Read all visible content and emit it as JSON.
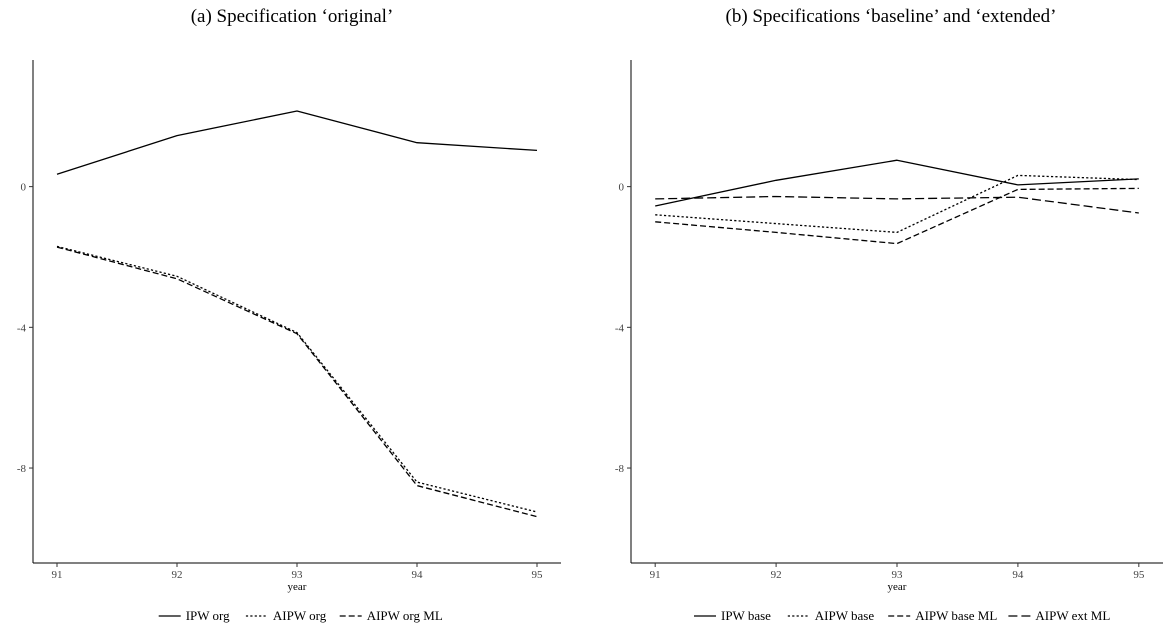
{
  "panels": {
    "a": {
      "title": "(a) Specification ‘original’"
    },
    "b": {
      "title": "(b) Specifications ‘baseline’ and ‘extended’"
    }
  },
  "chart_data": [
    {
      "type": "line",
      "title": "(a) Specification ‘original’",
      "xlabel": "year",
      "ylabel": "",
      "x": [
        91,
        92,
        93,
        94,
        95
      ],
      "x_ticks": [
        "91",
        "92",
        "93",
        "94",
        "95"
      ],
      "y_ticks": [
        0,
        -4,
        -8
      ],
      "xlim": [
        90.8,
        95.2
      ],
      "ylim": [
        -10.7,
        3.6
      ],
      "grid": false,
      "legend_position": "bottom",
      "series": [
        {
          "name": "IPW org",
          "dash": "solid",
          "values": [
            0.35,
            1.45,
            2.15,
            1.25,
            1.03
          ]
        },
        {
          "name": "AIPW org",
          "dash": "dotted",
          "values": [
            -1.7,
            -2.55,
            -4.15,
            -8.4,
            -9.25
          ]
        },
        {
          "name": "AIPW org ML",
          "dash": "dashed",
          "values": [
            -1.72,
            -2.62,
            -4.18,
            -8.5,
            -9.38
          ]
        }
      ]
    },
    {
      "type": "line",
      "title": "(b) Specifications ‘baseline’ and ‘extended’",
      "xlabel": "year",
      "ylabel": "",
      "x": [
        91,
        92,
        93,
        94,
        95
      ],
      "x_ticks": [
        "91",
        "92",
        "93",
        "94",
        "95"
      ],
      "y_ticks": [
        0,
        -4,
        -8
      ],
      "xlim": [
        90.8,
        95.2
      ],
      "ylim": [
        -10.7,
        3.6
      ],
      "grid": false,
      "legend_position": "bottom",
      "series": [
        {
          "name": "IPW base",
          "dash": "solid",
          "values": [
            -0.55,
            0.18,
            0.75,
            0.05,
            0.22
          ]
        },
        {
          "name": "AIPW base",
          "dash": "dotted",
          "values": [
            -0.8,
            -1.05,
            -1.3,
            0.32,
            0.2
          ]
        },
        {
          "name": "AIPW base ML",
          "dash": "dashed",
          "values": [
            -1.0,
            -1.3,
            -1.62,
            -0.08,
            -0.05
          ]
        },
        {
          "name": "AIPW ext ML",
          "dash": "longdash",
          "values": [
            -0.35,
            -0.28,
            -0.35,
            -0.3,
            -0.75
          ]
        }
      ]
    }
  ]
}
